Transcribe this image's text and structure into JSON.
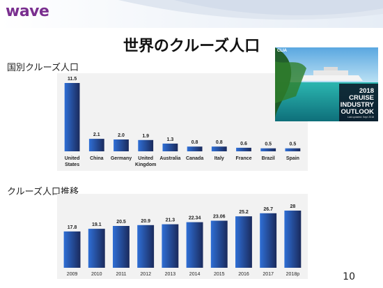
{
  "brand": {
    "logo_text": "wave"
  },
  "slide": {
    "title": "世界のクルーズ人口",
    "page_number": "10"
  },
  "sections": {
    "by_country_label": "国別クルーズ人口",
    "trend_label": "クルーズ人口推移"
  },
  "promo": {
    "logo": "CLIA",
    "lines": [
      "2018",
      "CRUISE",
      "INDUSTRY",
      "OUTLOOK"
    ],
    "small_print": "Last updated: Sept 2018"
  },
  "colors": {
    "bar_light": "#2f6fd6",
    "bar_dark": "#1a2a5c",
    "chart_bg": "#f2f2f2"
  },
  "chart_data": [
    {
      "type": "bar",
      "categories": [
        "United\nStates",
        "China",
        "Germany",
        "United\nKingdom",
        "Australia",
        "Canada",
        "Italy",
        "France",
        "Brazil",
        "Spain"
      ],
      "values": [
        11.5,
        2.1,
        2.0,
        1.9,
        1.3,
        0.8,
        0.8,
        0.6,
        0.5,
        0.5
      ],
      "value_labels": [
        "11.5",
        "2.1",
        "2.0",
        "1.9",
        "1.3",
        "0.8",
        "0.8",
        "0.6",
        "0.5",
        "0.5"
      ],
      "ylim": [
        0,
        11.5
      ]
    },
    {
      "type": "bar",
      "categories": [
        "2009",
        "2010",
        "2011",
        "2012",
        "2013",
        "2014",
        "2015",
        "2016",
        "2017",
        "2018p"
      ],
      "values": [
        17.8,
        19.1,
        20.5,
        20.9,
        21.3,
        22.34,
        23.06,
        25.2,
        26.7,
        28
      ],
      "value_labels": [
        "17.8",
        "19.1",
        "20.5",
        "20.9",
        "21.3",
        "22.34",
        "23.06",
        "25.2",
        "26.7",
        "28"
      ],
      "ylim": [
        0,
        28
      ]
    }
  ]
}
